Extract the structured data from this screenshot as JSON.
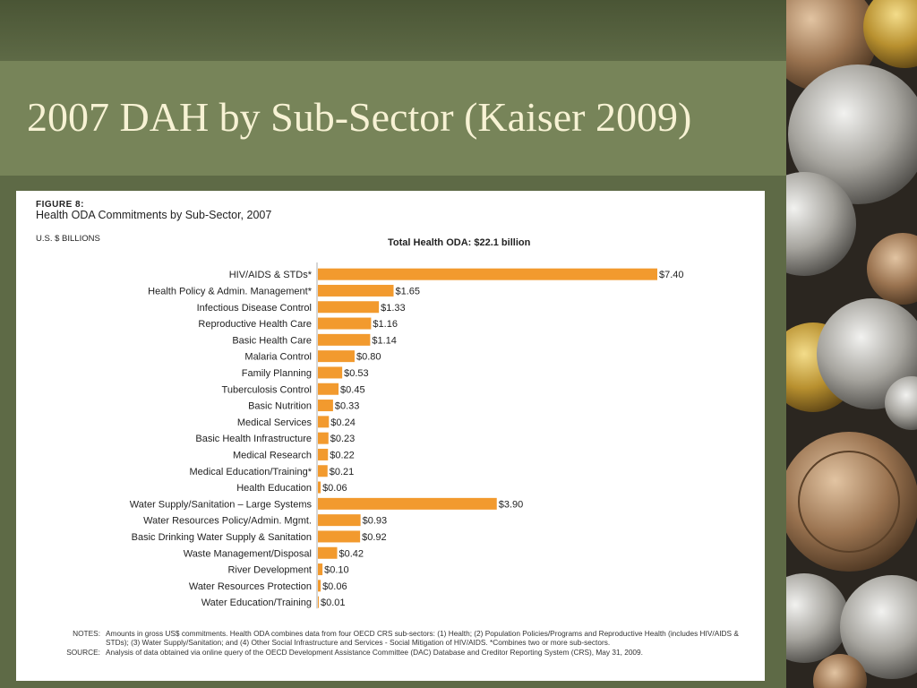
{
  "slide": {
    "title": "2007 DAH by Sub-Sector (Kaiser 2009)"
  },
  "figure": {
    "label": "FIGURE 8:",
    "title": "Health ODA Commitments by Sub-Sector, 2007",
    "unit": "U.S. $ BILLIONS",
    "total": "Total Health ODA: $22.1 billion"
  },
  "chart_data": {
    "type": "bar",
    "orientation": "horizontal",
    "title": "Health ODA Commitments by Sub-Sector, 2007",
    "ylabel": "U.S. $ BILLIONS",
    "xlim": [
      0,
      7.4
    ],
    "grid": false,
    "legend": "none",
    "bar_color": "#f29a2e",
    "categories": [
      "HIV/AIDS & STDs*",
      "Health Policy & Admin. Management*",
      "Infectious Disease Control",
      "Reproductive Health Care",
      "Basic Health Care",
      "Malaria Control",
      "Family Planning",
      "Tuberculosis Control",
      "Basic Nutrition",
      "Medical Services",
      "Basic Health Infrastructure",
      "Medical Research",
      "Medical Education/Training*",
      "Health Education",
      "Water Supply/Sanitation – Large Systems",
      "Water Resources Policy/Admin. Mgmt.",
      "Basic Drinking Water Supply & Sanitation",
      "Waste Management/Disposal",
      "River Development",
      "Water Resources Protection",
      "Water Education/Training"
    ],
    "values": [
      7.4,
      1.65,
      1.33,
      1.16,
      1.14,
      0.8,
      0.53,
      0.45,
      0.33,
      0.24,
      0.23,
      0.22,
      0.21,
      0.06,
      3.9,
      0.93,
      0.92,
      0.42,
      0.1,
      0.06,
      0.01
    ],
    "value_labels": [
      "$7.40",
      "$1.65",
      "$1.33",
      "$1.16",
      "$1.14",
      "$0.80",
      "$0.53",
      "$0.45",
      "$0.33",
      "$0.24",
      "$0.23",
      "$0.22",
      "$0.21",
      "$0.06",
      "$3.90",
      "$0.93",
      "$0.92",
      "$0.42",
      "$0.10",
      "$0.06",
      "$0.01"
    ]
  },
  "notes": {
    "notes_label": "NOTES:",
    "notes_text": "Amounts in gross US$ commitments. Health ODA combines data from four OECD CRS sub-sectors: (1) Health; (2) Population Policies/Programs and Reproductive Health (includes HIV/AIDS & STDs); (3) Water Supply/Sanitation; and (4) Other Social Infrastructure and Services - Social Mitigation of HIV/AIDS. *Combines two or more sub-sectors.",
    "source_label": "SOURCE:",
    "source_text": "Analysis of data obtained via online query of the OECD Development Assistance Committee (DAC) Database and Creditor Reporting System (CRS), May 31, 2009."
  }
}
